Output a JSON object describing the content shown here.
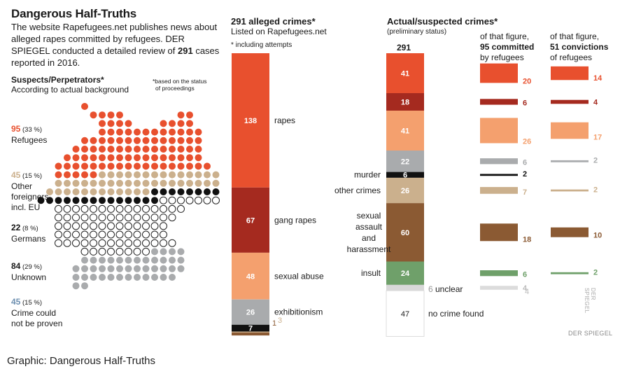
{
  "header": {
    "title": "Dangerous Half-Truths",
    "intro_a": "The website Rapefugees.net publishes news about alleged rapes committed by refugees. DER SPIEGEL conducted a detailed review of ",
    "intro_num": "291",
    "intro_b": " cases reported in 2016."
  },
  "suspects": {
    "title": "Suspects/Perpetrators*",
    "subtitle": "According to actual background",
    "footnote_line1": "*based on the status",
    "footnote_line2": "of proceedings",
    "groups": [
      {
        "count": "95",
        "pct": "(33 %)",
        "label_lines": [
          "Refugees"
        ],
        "color": "#e8502e",
        "n": 95
      },
      {
        "count": "45",
        "pct": "(15 %)",
        "label_lines": [
          "Other",
          "foreigners,",
          "incl. EU"
        ],
        "color": "#cbb08d",
        "n": 45
      },
      {
        "count": "22",
        "pct": "(8 %)",
        "label_lines": [
          "Germans"
        ],
        "color": "#111111",
        "n": 22
      },
      {
        "count": "84",
        "pct": "(29 %)",
        "label_lines": [
          "Unknown"
        ],
        "color": "#ffffff",
        "n": 84
      },
      {
        "count": "45",
        "pct": "(15 %)",
        "label_lines": [
          "Crime could",
          "not be proven"
        ],
        "color": "#a9abad",
        "n": 45
      }
    ]
  },
  "alleged": {
    "title": "291 alleged crimes*",
    "subtitle": "Listed on Rapefugees.net",
    "footnote": "* including attempts"
  },
  "actual": {
    "title": "Actual/suspected crimes*",
    "subtitle": "(preliminary status)",
    "total": "291",
    "col_refugees_line1": "of that figure,",
    "col_refugees_line2": "95 committed",
    "col_refugees_line3": "by refugees",
    "col_conv_line1": "of that figure,",
    "col_conv_line2": "51 convictions",
    "col_conv_line3": "of refugees",
    "unclear_label": "unclear",
    "no_crime_label": "no crime found"
  },
  "colors": {
    "rapes": "#e8502e",
    "gang_rapes": "#a52a1f",
    "sexual_abuse": "#f4a06e",
    "exhibitionism": "#a9abad",
    "murder": "#111111",
    "other_crimes": "#cbb08d",
    "sexual_assault": "#8b5a33",
    "insult": "#6fa06a",
    "unclear": "#d8d8d8",
    "no_crime": "#ffffff"
  },
  "chart_data": [
    {
      "type": "bar",
      "title": "291 alleged crimes*",
      "stacked": true,
      "series": [
        {
          "name": "rapes",
          "value": 138
        },
        {
          "name": "gang rapes",
          "value": 67
        },
        {
          "name": "sexual abuse",
          "value": 48
        },
        {
          "name": "exhibitionism",
          "value": 26
        },
        {
          "name": "",
          "value": 7
        },
        {
          "name": "",
          "value": 1
        },
        {
          "name": "",
          "value": 3
        }
      ]
    },
    {
      "type": "bar",
      "title": "Actual/suspected crimes*",
      "stacked": true,
      "total": 291,
      "segments": [
        {
          "name": "",
          "value": 41,
          "by_refugees": 20,
          "convictions": 14
        },
        {
          "name": "",
          "value": 18,
          "by_refugees": 6,
          "convictions": 4
        },
        {
          "name": "",
          "value": 41,
          "by_refugees": 26,
          "convictions": 17
        },
        {
          "name": "",
          "value": 22,
          "by_refugees": 6,
          "convictions": 2
        },
        {
          "name": "murder",
          "value": 6,
          "by_refugees": 2,
          "convictions": 0
        },
        {
          "name": "other crimes",
          "value": 26,
          "by_refugees": 7,
          "convictions": 2
        },
        {
          "name": "sexual assault and harassment",
          "value": 60,
          "by_refugees": 18,
          "convictions": 10
        },
        {
          "name": "insult",
          "value": 24,
          "by_refugees": 6,
          "convictions": 2
        },
        {
          "name": "unclear",
          "value": 6,
          "by_refugees": 4,
          "convictions": 0
        },
        {
          "name": "no crime found",
          "value": 47,
          "by_refugees": 0,
          "convictions": 0
        }
      ]
    }
  ],
  "credit": "DER SPIEGEL",
  "footer": "Graphic: Dangerous Half-Truths"
}
